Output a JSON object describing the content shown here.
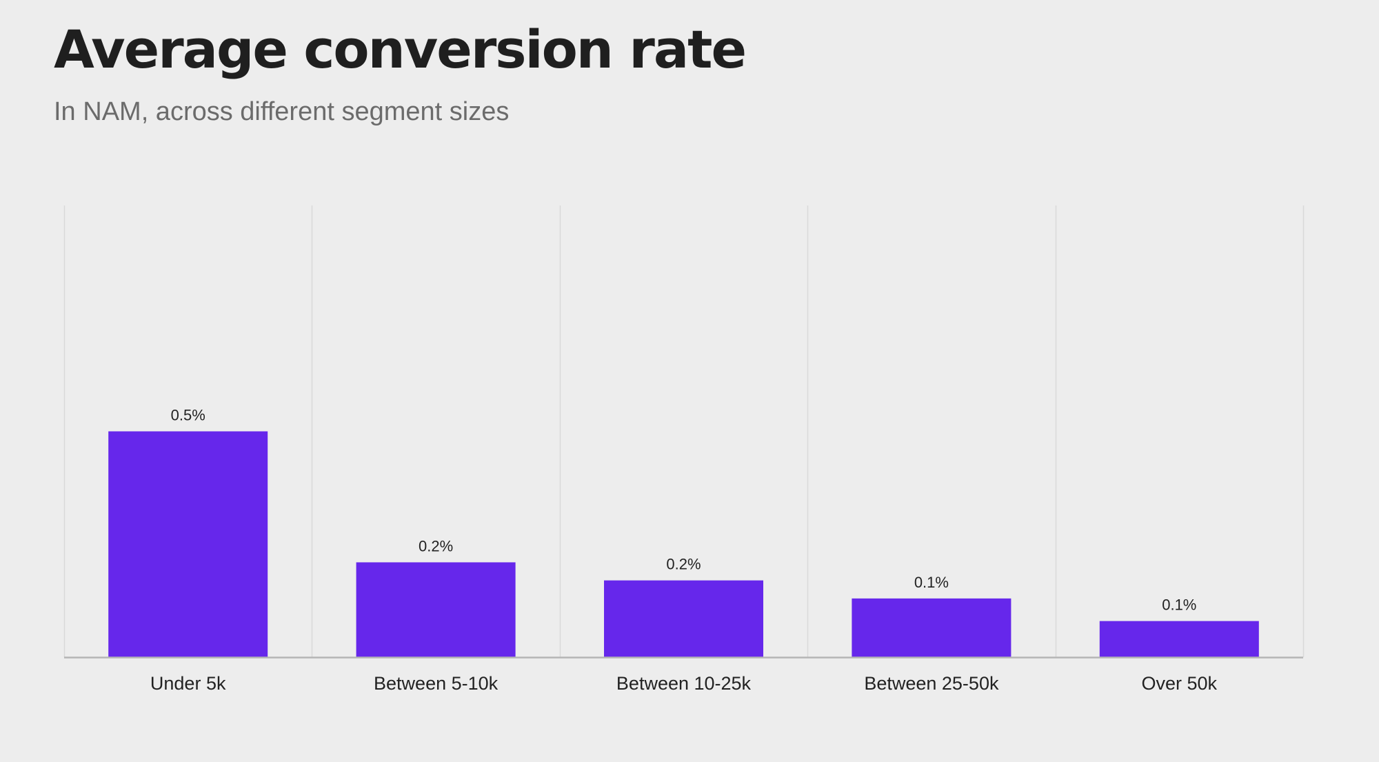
{
  "title": "Average conversion rate",
  "subtitle": "In NAM, across different segment sizes",
  "colors": {
    "background": "#ededed",
    "bar": "#6627eb",
    "title": "#1f1f1f",
    "subtitle": "#6b6b6b",
    "label": "#222222",
    "gridline": "#d9d9d9",
    "baseline": "#b5b5b5"
  },
  "chart_data": {
    "type": "bar",
    "title": "Average conversion rate",
    "subtitle": "In NAM, across different segment sizes",
    "xlabel": "",
    "ylabel": "",
    "categories": [
      "Under 5k",
      "Between 5-10k",
      "Between 10-25k",
      "Between 25-50k",
      "Over 50k"
    ],
    "values": [
      0.5,
      0.21,
      0.17,
      0.13,
      0.08
    ],
    "value_labels": [
      "0.5%",
      "0.2%",
      "0.2%",
      "0.1%",
      "0.1%"
    ],
    "ylim": [
      0,
      1.0
    ],
    "grid": "vertical separators between categories",
    "legend": "none"
  }
}
